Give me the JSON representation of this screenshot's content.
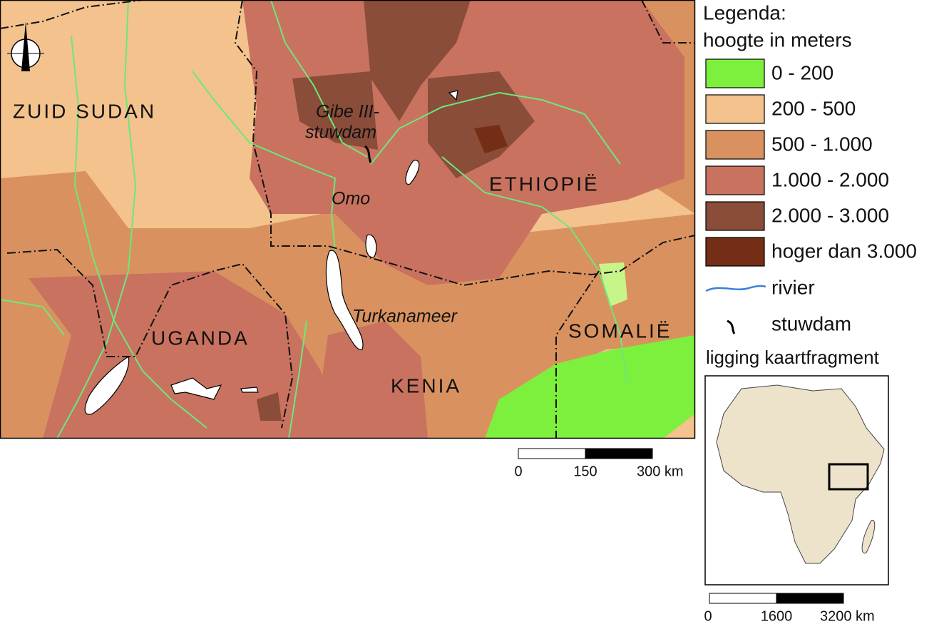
{
  "map": {
    "labels": {
      "south_sudan": "ZUID SUDAN",
      "ethiopia": "ETHIOPIË",
      "uganda": "UGANDA",
      "kenya": "KENIA",
      "somalia": "SOMALIË",
      "river": "Omo",
      "lake": "Turkanameer",
      "dam": [
        "Gibe III-",
        "stuwdam"
      ]
    },
    "scale": [
      "0",
      "150",
      "300 km"
    ]
  },
  "legend": {
    "title": [
      "Legenda:",
      "hoogte in meters"
    ],
    "items": [
      {
        "label": "0 - 200",
        "color": "#7df03e"
      },
      {
        "label": "200 - 500",
        "color": "#f3c28d"
      },
      {
        "label": "500 - 1.000",
        "color": "#d9925f"
      },
      {
        "label": "1.000 - 2.000",
        "color": "#c9725f"
      },
      {
        "label": "2.000 - 3.000",
        "color": "#8a4d39"
      },
      {
        "label": "hoger dan 3.000",
        "color": "#732e15"
      }
    ],
    "river": "rivier",
    "dam": "stuwdam"
  },
  "inset": {
    "title": "ligging kaartfragment",
    "scale": [
      "0",
      "1600",
      "3200 km"
    ]
  }
}
